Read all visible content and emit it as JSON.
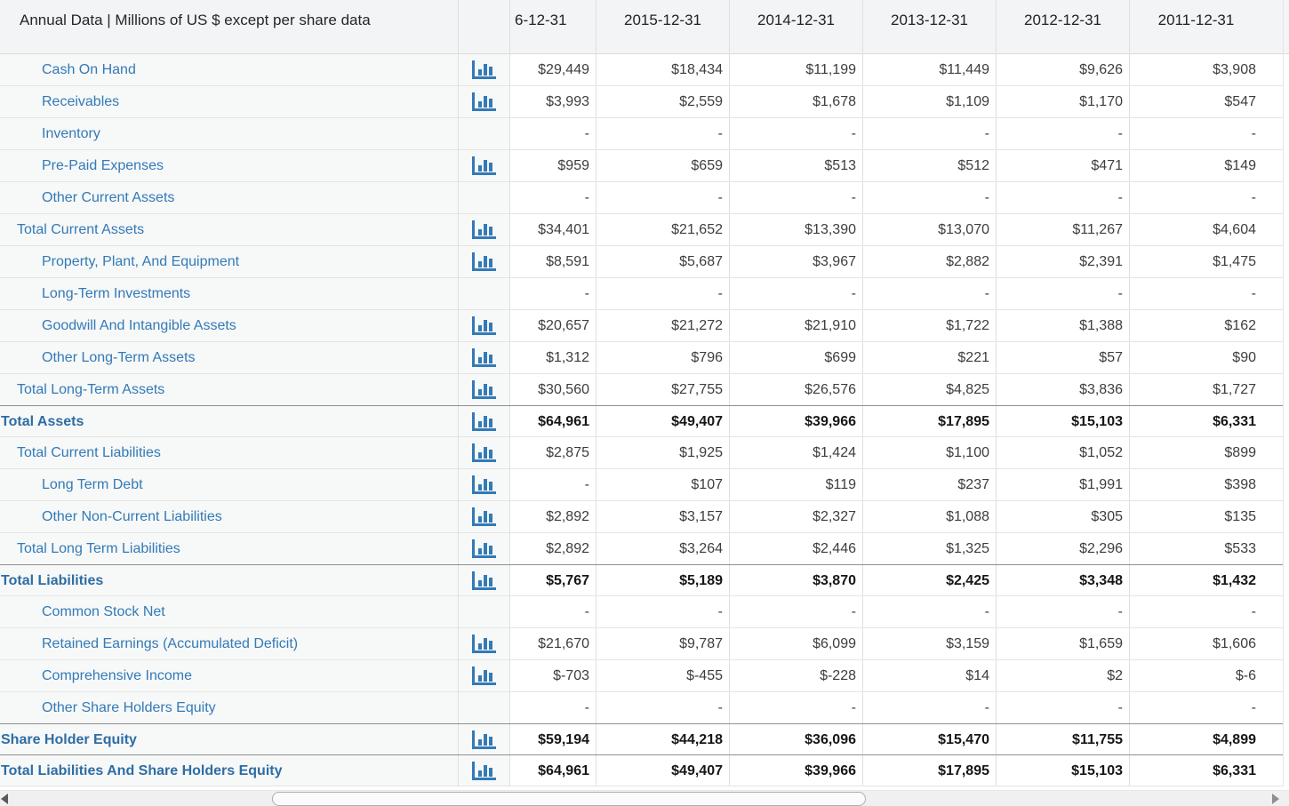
{
  "header": {
    "title": "Annual Data | Millions of US $ except per share data",
    "columns": [
      "6-12-31",
      "2015-12-31",
      "2014-12-31",
      "2013-12-31",
      "2012-12-31",
      "2011-12-31"
    ]
  },
  "colors": {
    "link_blue": "#337ab7",
    "bold_link_blue": "#2e6da4",
    "icon_blue": "#337ab7",
    "header_bg": "#f3f4f5",
    "label_col_bg": "#f7f8f8",
    "total_row_border": "#8f8f8f"
  },
  "icons": {
    "chart": "bar-chart-icon",
    "scroll_left": "left-triangle",
    "scroll_right": "right-triangle"
  },
  "rows": [
    {
      "label": "Cash On Hand",
      "indent": 2,
      "bold": false,
      "chart_icon": true,
      "values": [
        "$29,449",
        "$18,434",
        "$11,199",
        "$11,449",
        "$9,626",
        "$3,908"
      ]
    },
    {
      "label": "Receivables",
      "indent": 2,
      "bold": false,
      "chart_icon": true,
      "values": [
        "$3,993",
        "$2,559",
        "$1,678",
        "$1,109",
        "$1,170",
        "$547"
      ]
    },
    {
      "label": "Inventory",
      "indent": 2,
      "bold": false,
      "chart_icon": false,
      "values": [
        "-",
        "-",
        "-",
        "-",
        "-",
        "-"
      ]
    },
    {
      "label": "Pre-Paid Expenses",
      "indent": 2,
      "bold": false,
      "chart_icon": true,
      "values": [
        "$959",
        "$659",
        "$513",
        "$512",
        "$471",
        "$149"
      ]
    },
    {
      "label": "Other Current Assets",
      "indent": 2,
      "bold": false,
      "chart_icon": false,
      "values": [
        "-",
        "-",
        "-",
        "-",
        "-",
        "-"
      ]
    },
    {
      "label": "Total Current Assets",
      "indent": 1,
      "bold": false,
      "chart_icon": true,
      "values": [
        "$34,401",
        "$21,652",
        "$13,390",
        "$13,070",
        "$11,267",
        "$4,604"
      ]
    },
    {
      "label": "Property, Plant, And Equipment",
      "indent": 2,
      "bold": false,
      "chart_icon": true,
      "values": [
        "$8,591",
        "$5,687",
        "$3,967",
        "$2,882",
        "$2,391",
        "$1,475"
      ]
    },
    {
      "label": "Long-Term Investments",
      "indent": 2,
      "bold": false,
      "chart_icon": false,
      "values": [
        "-",
        "-",
        "-",
        "-",
        "-",
        "-"
      ]
    },
    {
      "label": "Goodwill And Intangible Assets",
      "indent": 2,
      "bold": false,
      "chart_icon": true,
      "values": [
        "$20,657",
        "$21,272",
        "$21,910",
        "$1,722",
        "$1,388",
        "$162"
      ]
    },
    {
      "label": "Other Long-Term Assets",
      "indent": 2,
      "bold": false,
      "chart_icon": true,
      "values": [
        "$1,312",
        "$796",
        "$699",
        "$221",
        "$57",
        "$90"
      ]
    },
    {
      "label": "Total Long-Term Assets",
      "indent": 1,
      "bold": false,
      "chart_icon": true,
      "values": [
        "$30,560",
        "$27,755",
        "$26,576",
        "$4,825",
        "$3,836",
        "$1,727"
      ]
    },
    {
      "label": "Total Assets",
      "indent": 0,
      "bold": true,
      "chart_icon": true,
      "values": [
        "$64,961",
        "$49,407",
        "$39,966",
        "$17,895",
        "$15,103",
        "$6,331"
      ]
    },
    {
      "label": "Total Current Liabilities",
      "indent": 1,
      "bold": false,
      "chart_icon": true,
      "values": [
        "$2,875",
        "$1,925",
        "$1,424",
        "$1,100",
        "$1,052",
        "$899"
      ]
    },
    {
      "label": "Long Term Debt",
      "indent": 2,
      "bold": false,
      "chart_icon": true,
      "values": [
        "-",
        "$107",
        "$119",
        "$237",
        "$1,991",
        "$398"
      ]
    },
    {
      "label": "Other Non-Current Liabilities",
      "indent": 2,
      "bold": false,
      "chart_icon": true,
      "values": [
        "$2,892",
        "$3,157",
        "$2,327",
        "$1,088",
        "$305",
        "$135"
      ]
    },
    {
      "label": "Total Long Term Liabilities",
      "indent": 1,
      "bold": false,
      "chart_icon": true,
      "values": [
        "$2,892",
        "$3,264",
        "$2,446",
        "$1,325",
        "$2,296",
        "$533"
      ]
    },
    {
      "label": "Total Liabilities",
      "indent": 0,
      "bold": true,
      "chart_icon": true,
      "values": [
        "$5,767",
        "$5,189",
        "$3,870",
        "$2,425",
        "$3,348",
        "$1,432"
      ]
    },
    {
      "label": "Common Stock Net",
      "indent": 2,
      "bold": false,
      "chart_icon": false,
      "values": [
        "-",
        "-",
        "-",
        "-",
        "-",
        "-"
      ]
    },
    {
      "label": "Retained Earnings (Accumulated Deficit)",
      "indent": 2,
      "bold": false,
      "chart_icon": true,
      "values": [
        "$21,670",
        "$9,787",
        "$6,099",
        "$3,159",
        "$1,659",
        "$1,606"
      ]
    },
    {
      "label": "Comprehensive Income",
      "indent": 2,
      "bold": false,
      "chart_icon": true,
      "values": [
        "$-703",
        "$-455",
        "$-228",
        "$14",
        "$2",
        "$-6"
      ]
    },
    {
      "label": "Other Share Holders Equity",
      "indent": 2,
      "bold": false,
      "chart_icon": false,
      "values": [
        "-",
        "-",
        "-",
        "-",
        "-",
        "-"
      ]
    },
    {
      "label": "Share Holder Equity",
      "indent": 0,
      "bold": true,
      "chart_icon": true,
      "values": [
        "$59,194",
        "$44,218",
        "$36,096",
        "$15,470",
        "$11,755",
        "$4,899"
      ]
    },
    {
      "label": "Total Liabilities And Share Holders Equity",
      "indent": 0,
      "bold": true,
      "chart_icon": true,
      "values": [
        "$64,961",
        "$49,407",
        "$39,966",
        "$17,895",
        "$15,103",
        "$6,331"
      ]
    }
  ]
}
